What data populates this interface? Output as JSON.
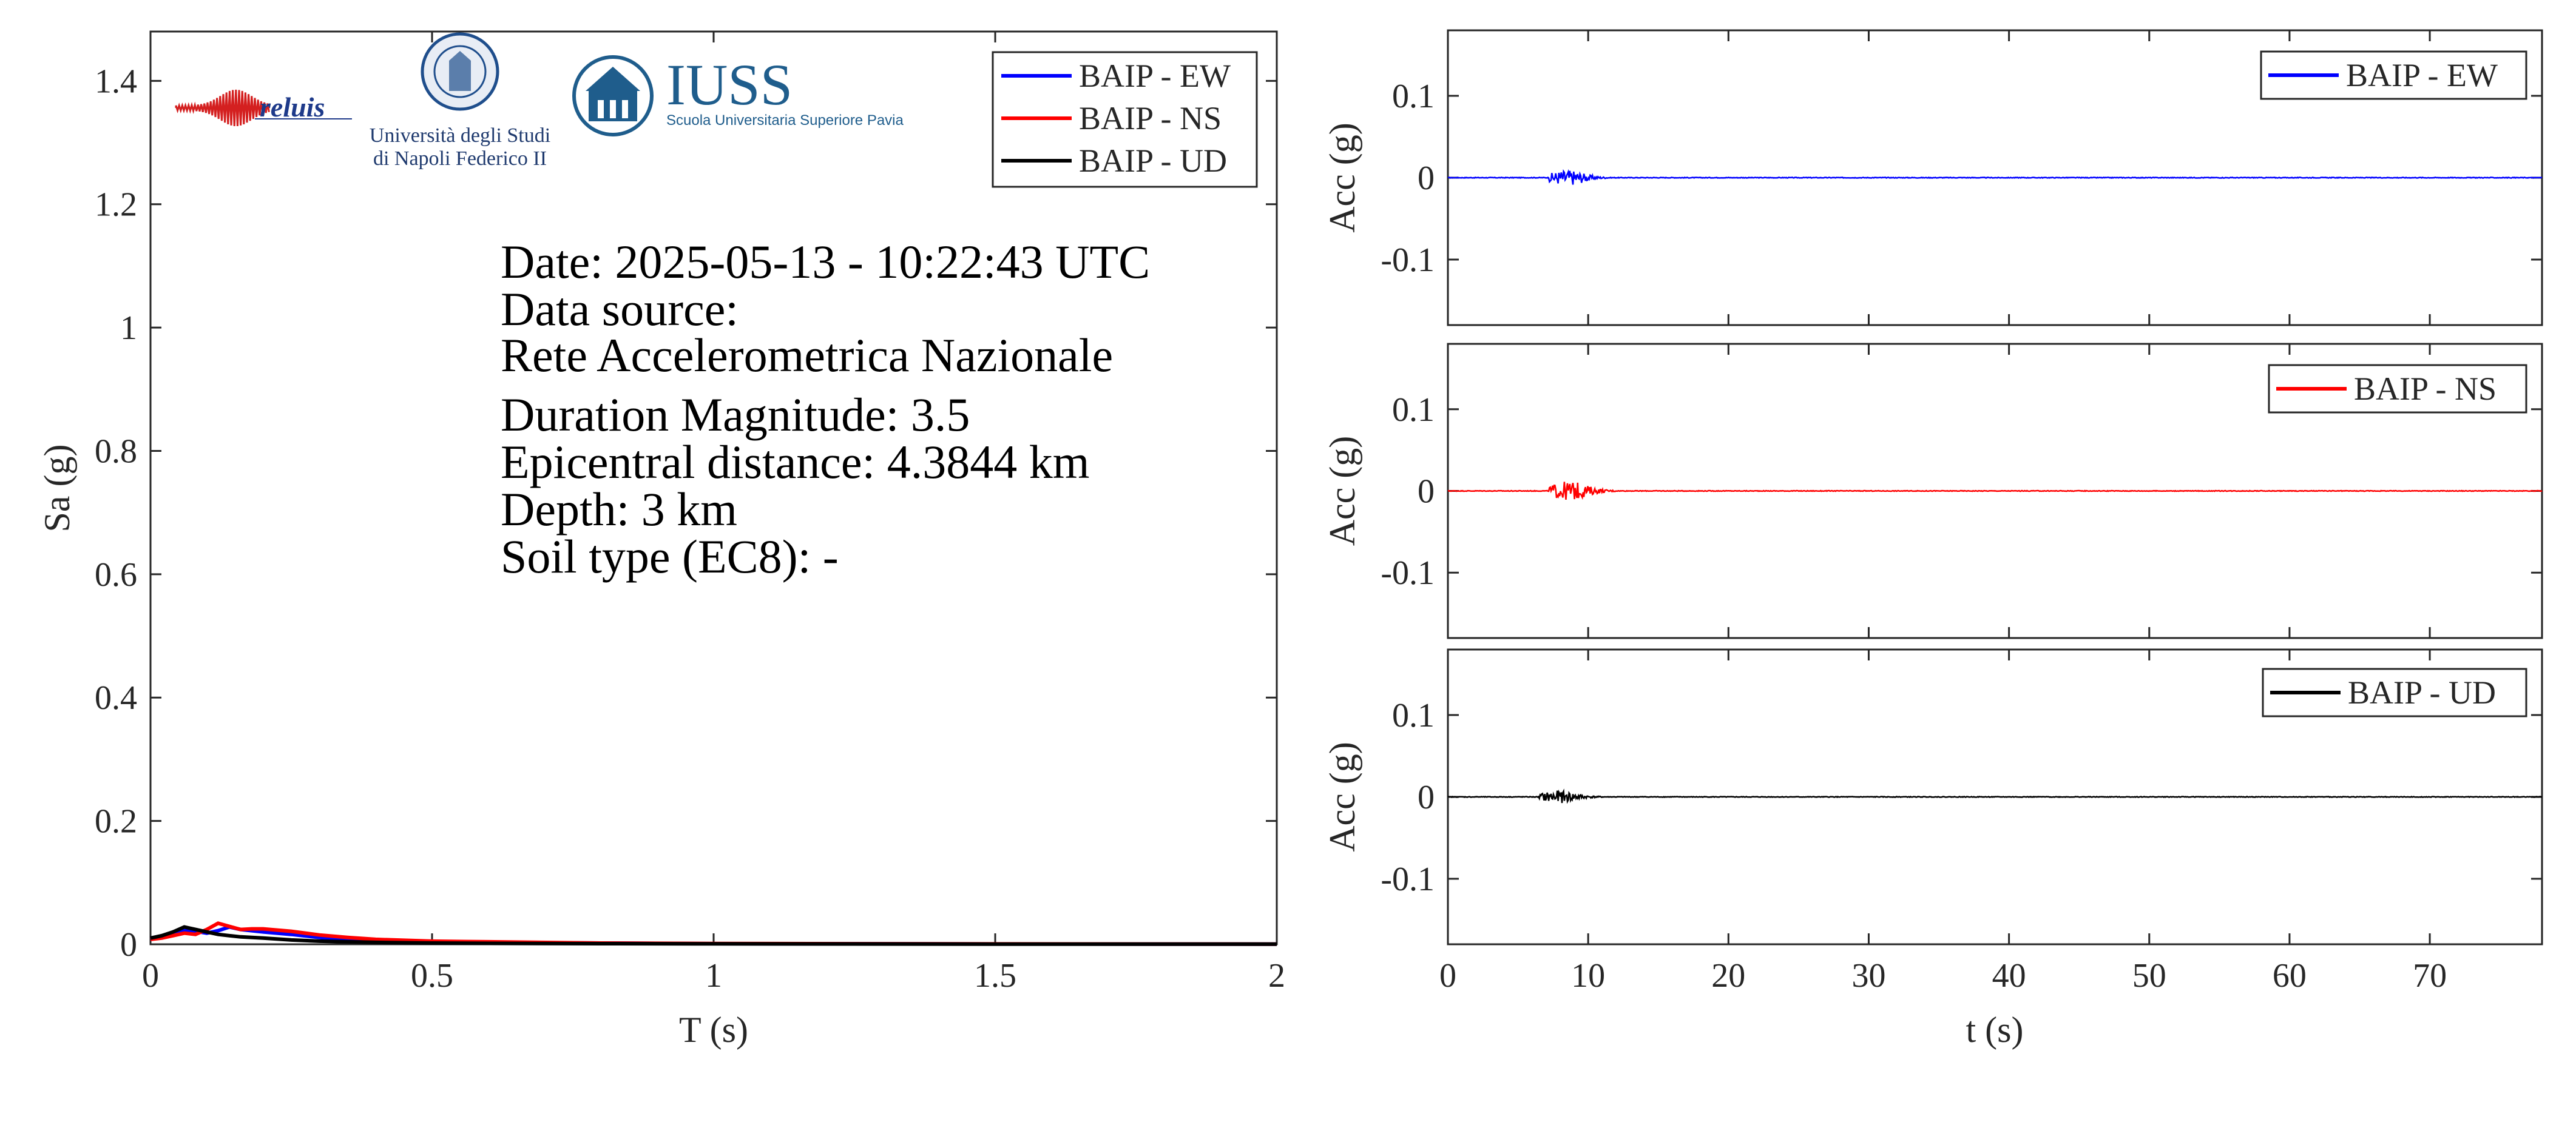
{
  "colors": {
    "ew": "#0000ff",
    "ns": "#ff0000",
    "ud": "#000000",
    "axis": "#262626",
    "iuss": "#1f5d8c"
  },
  "logos": {
    "reluis": "reluis",
    "unina_line1": "Università degli Studi",
    "unina_line2": "di Napoli Federico II",
    "iuss_name": "IUSS",
    "iuss_sub": "Scuola Universitaria Superiore Pavia"
  },
  "info": {
    "date": "Date: 2025-05-13 - 10:22:43 UTC",
    "source_label": "Data source:",
    "source": "Rete Accelerometrica Nazionale",
    "magnitude": "Duration Magnitude: 3.5",
    "distance": "Epicentral distance: 4.3844 km",
    "depth": "Depth: 3 km",
    "soil": "Soil type (EC8): -"
  },
  "chart_data": [
    {
      "type": "line",
      "xlabel": "T (s)",
      "ylabel": "Sa (g)",
      "xlim": [
        0,
        2
      ],
      "ylim": [
        0,
        1.48
      ],
      "xticks": [
        0,
        0.5,
        1,
        1.5,
        2
      ],
      "xticklabels": [
        "0",
        "0.5",
        "1",
        "1.5",
        "2"
      ],
      "yticks": [
        0,
        0.2,
        0.4,
        0.6,
        0.8,
        1,
        1.2,
        1.4
      ],
      "yticklabels": [
        "0",
        "0.2",
        "0.4",
        "0.6",
        "0.8",
        "1",
        "1.2",
        "1.4"
      ],
      "legend_position": "top-right",
      "series": [
        {
          "name": "BAIP - EW",
          "color": "#0000ff",
          "x": [
            0,
            0.02,
            0.04,
            0.06,
            0.08,
            0.1,
            0.12,
            0.14,
            0.16,
            0.18,
            0.2,
            0.25,
            0.3,
            0.35,
            0.4,
            0.5,
            0.6,
            0.8,
            1.0,
            1.5,
            2.0
          ],
          "y": [
            0.008,
            0.011,
            0.016,
            0.022,
            0.021,
            0.018,
            0.022,
            0.028,
            0.024,
            0.022,
            0.02,
            0.016,
            0.011,
            0.008,
            0.006,
            0.004,
            0.003,
            0.002,
            0.001,
            0.0005,
            0.0003
          ]
        },
        {
          "name": "BAIP - NS",
          "color": "#ff0000",
          "x": [
            0,
            0.02,
            0.04,
            0.06,
            0.08,
            0.1,
            0.12,
            0.14,
            0.16,
            0.18,
            0.2,
            0.25,
            0.3,
            0.35,
            0.4,
            0.5,
            0.6,
            0.8,
            1.0,
            1.5,
            2.0
          ],
          "y": [
            0.008,
            0.01,
            0.014,
            0.018,
            0.016,
            0.024,
            0.034,
            0.029,
            0.024,
            0.025,
            0.025,
            0.021,
            0.015,
            0.011,
            0.008,
            0.005,
            0.004,
            0.002,
            0.0012,
            0.0006,
            0.0003
          ]
        },
        {
          "name": "BAIP - UD",
          "color": "#000000",
          "x": [
            0,
            0.02,
            0.04,
            0.06,
            0.08,
            0.1,
            0.12,
            0.14,
            0.16,
            0.18,
            0.2,
            0.25,
            0.3,
            0.35,
            0.4,
            0.5,
            0.6,
            0.8,
            1.0,
            1.5,
            2.0
          ],
          "y": [
            0.01,
            0.014,
            0.02,
            0.028,
            0.024,
            0.02,
            0.016,
            0.014,
            0.012,
            0.011,
            0.01,
            0.007,
            0.005,
            0.004,
            0.003,
            0.002,
            0.0015,
            0.001,
            0.0007,
            0.0003,
            0.0002
          ]
        }
      ]
    },
    {
      "type": "line",
      "xlabel": "",
      "ylabel": "Acc (g)",
      "xlim": [
        0,
        78
      ],
      "ylim": [
        -0.18,
        0.18
      ],
      "yticks": [
        -0.1,
        0,
        0.1
      ],
      "yticklabels": [
        "-0.1",
        "0",
        "0.1"
      ],
      "legend_position": "top-right",
      "series": [
        {
          "name": "BAIP - EW",
          "color": "#0000ff",
          "event_start": 7.2,
          "event_end": 11.5,
          "peak": 0.009
        }
      ]
    },
    {
      "type": "line",
      "xlabel": "",
      "ylabel": "Acc (g)",
      "xlim": [
        0,
        78
      ],
      "ylim": [
        -0.18,
        0.18
      ],
      "yticks": [
        -0.1,
        0,
        0.1
      ],
      "yticklabels": [
        "-0.1",
        "0",
        "0.1"
      ],
      "legend_position": "top-right",
      "series": [
        {
          "name": "BAIP - NS",
          "color": "#ff0000",
          "event_start": 7.2,
          "event_end": 12,
          "peak": 0.011
        }
      ]
    },
    {
      "type": "line",
      "xlabel": "t (s)",
      "ylabel": "Acc (g)",
      "xlim": [
        0,
        78
      ],
      "ylim": [
        -0.18,
        0.18
      ],
      "xticks": [
        0,
        10,
        20,
        30,
        40,
        50,
        60,
        70
      ],
      "xticklabels": [
        "0",
        "10",
        "20",
        "30",
        "40",
        "50",
        "60",
        "70"
      ],
      "yticks": [
        -0.1,
        0,
        0.1
      ],
      "yticklabels": [
        "-0.1",
        "0",
        "0.1"
      ],
      "legend_position": "top-right",
      "series": [
        {
          "name": "BAIP - UD",
          "color": "#000000",
          "event_start": 6.5,
          "event_end": 11,
          "peak": 0.007
        }
      ]
    }
  ]
}
